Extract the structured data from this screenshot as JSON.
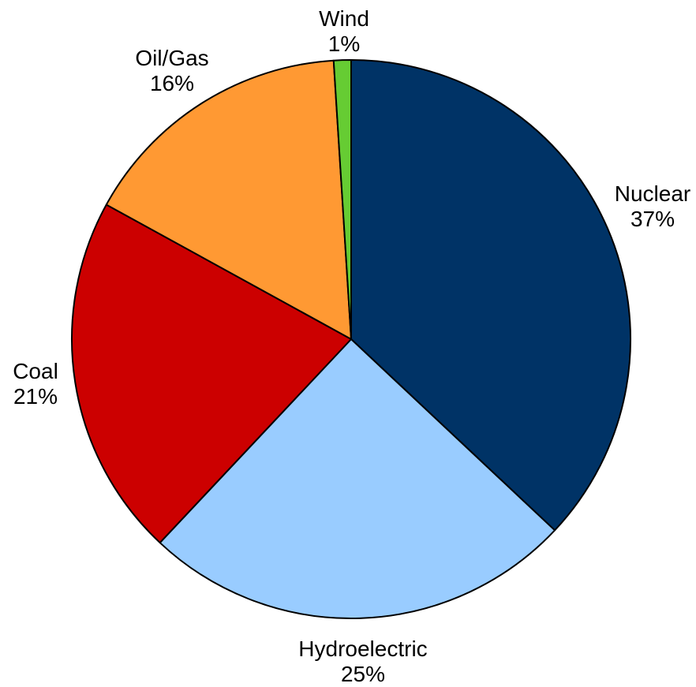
{
  "chart_data": {
    "type": "pie",
    "title": "",
    "start_angle": "12 o'clock",
    "direction": "clockwise",
    "slices": [
      {
        "label": "Nuclear",
        "value": 37,
        "display": "37%",
        "color": "#003366"
      },
      {
        "label": "Hydroelectric",
        "value": 25,
        "display": "25%",
        "color": "#99ccff"
      },
      {
        "label": "Coal",
        "value": 21,
        "display": "21%",
        "color": "#cc0000"
      },
      {
        "label": "Oil/Gas",
        "value": 16,
        "display": "16%",
        "color": "#ff9933"
      },
      {
        "label": "Wind",
        "value": 1,
        "display": "1%",
        "color": "#66cc33"
      }
    ],
    "legend": "none",
    "data_labels": "outside"
  }
}
